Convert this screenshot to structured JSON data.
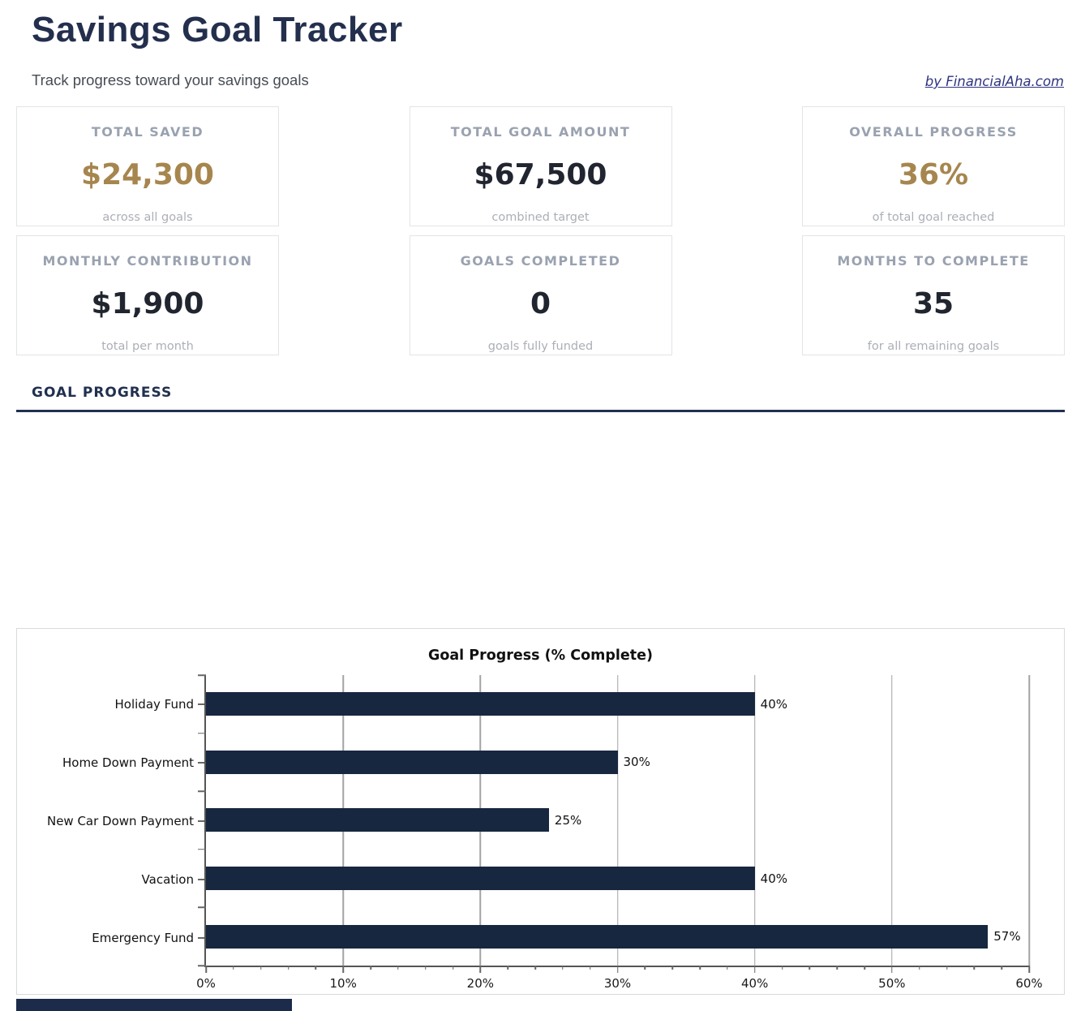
{
  "page": {
    "title": "Savings Goal Tracker",
    "subtitle": "Track progress toward your savings goals",
    "attribution": "by FinancialAha.com"
  },
  "stats": [
    {
      "label": "TOTAL SAVED",
      "value": "$24,300",
      "caption": "across all goals",
      "accent": true
    },
    {
      "label": "TOTAL GOAL AMOUNT",
      "value": "$67,500",
      "caption": "combined target",
      "accent": false
    },
    {
      "label": "OVERALL PROGRESS",
      "value": "36%",
      "caption": "of total goal reached",
      "accent": true
    },
    {
      "label": "MONTHLY CONTRIBUTION",
      "value": "$1,900",
      "caption": "total per month",
      "accent": false
    },
    {
      "label": "GOALS COMPLETED",
      "value": "0",
      "caption": "goals fully funded",
      "accent": false
    },
    {
      "label": "MONTHS TO COMPLETE",
      "value": "35",
      "caption": "for all remaining goals",
      "accent": false
    }
  ],
  "section": {
    "heading": "GOAL PROGRESS"
  },
  "chart_data": {
    "type": "bar",
    "orientation": "horizontal",
    "title": "Goal Progress (% Complete)",
    "categories": [
      "Holiday Fund",
      "Home Down Payment",
      "New Car Down Payment",
      "Vacation",
      "Emergency Fund"
    ],
    "values": [
      40,
      30,
      25,
      40,
      57
    ],
    "value_labels": [
      "40%",
      "30%",
      "25%",
      "40%",
      "57%"
    ],
    "xlim": [
      0,
      60
    ],
    "x_major_ticks": [
      0,
      10,
      20,
      30,
      40,
      50,
      60
    ],
    "x_tick_labels": [
      "0%",
      "10%",
      "20%",
      "30%",
      "40%",
      "50%",
      "60%"
    ],
    "x_minor_tick_step": 2,
    "grid": true,
    "legend": "none",
    "bar_color": "#17273f"
  },
  "colors": {
    "navy_heading": "#232f4d",
    "gold_accent": "#a6864e",
    "card_label_gray": "#9aa2b0",
    "rule_navy": "#203050",
    "bar_navy": "#17273f",
    "link_blue": "#2e3480"
  }
}
